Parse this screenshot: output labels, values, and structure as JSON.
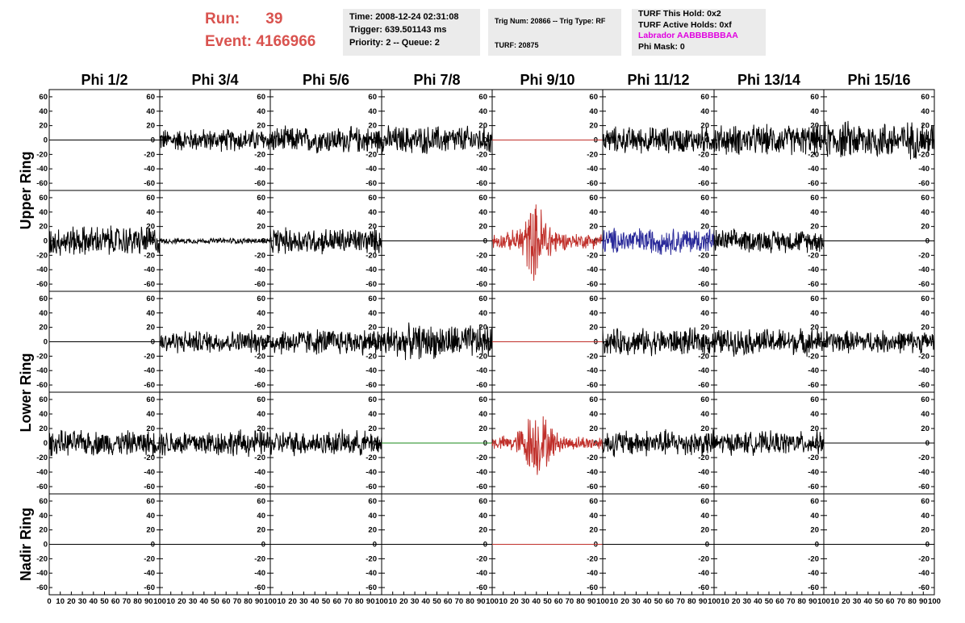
{
  "header": {
    "run_label": "Run:",
    "run_value": "39",
    "event_label": "Event:",
    "event_value": "4166966",
    "time": "Time: 2008-12-24 02:31:08",
    "trigger": "Trigger: 639.501143 ms",
    "priority": "Priority: 2 -- Queue: 2",
    "trig_num": "Trig Num: 20866 -- Trig Type: RF",
    "turf": "TURF: 20875",
    "turf_this_hold": "TURF This Hold: 0x2",
    "turf_active_holds": "TURF Active Holds: 0xf",
    "labrador": "Labrador AABBBBBBAA",
    "phi_mask": "Phi Mask: 0"
  },
  "colors": {
    "run_text": "#d9534f",
    "labrador_text": "#e000e0",
    "trace_default": "#000000",
    "trace_red": "#c0302b",
    "trace_blue": "#2a2a9a",
    "trace_green": "#1a8a1a"
  },
  "chart_data": {
    "type": "line",
    "columns": [
      "Phi 1/2",
      "Phi 3/4",
      "Phi 5/6",
      "Phi 7/8",
      "Phi 9/10",
      "Phi 11/12",
      "Phi 13/14",
      "Phi 15/16"
    ],
    "ring_labels": [
      {
        "label": "Upper Ring",
        "rows": [
          0,
          1
        ]
      },
      {
        "label": "Lower Ring",
        "rows": [
          2,
          3
        ]
      },
      {
        "label": "Nadir Ring",
        "rows": [
          4
        ]
      }
    ],
    "xlim": [
      0,
      100
    ],
    "ylim": [
      -70,
      70
    ],
    "x_ticks": [
      "0",
      "10",
      "20",
      "30",
      "40",
      "50",
      "60",
      "70",
      "80",
      "90",
      "100"
    ],
    "y_ticks": [
      "60",
      "40",
      "20",
      "0",
      "-20",
      "-40",
      "-60"
    ],
    "grid": false,
    "panels": [
      [
        {
          "amplitude": 0,
          "color": "default"
        },
        {
          "amplitude": 12,
          "color": "default"
        },
        {
          "amplitude": 14,
          "color": "default"
        },
        {
          "amplitude": 15,
          "color": "default"
        },
        {
          "amplitude": 0,
          "color": "red"
        },
        {
          "amplitude": 14,
          "color": "default"
        },
        {
          "amplitude": 16,
          "color": "default"
        },
        {
          "amplitude": 20,
          "color": "default"
        }
      ],
      [
        {
          "amplitude": 16,
          "color": "default"
        },
        {
          "amplitude": 3,
          "color": "default"
        },
        {
          "amplitude": 14,
          "color": "default"
        },
        {
          "amplitude": 0,
          "color": "default"
        },
        {
          "amplitude": 18,
          "color": "red",
          "burst": true
        },
        {
          "amplitude": 14,
          "color": "blue"
        },
        {
          "amplitude": 12,
          "color": "default"
        },
        {
          "amplitude": 0,
          "color": "default"
        }
      ],
      [
        {
          "amplitude": 0,
          "color": "default"
        },
        {
          "amplitude": 12,
          "color": "default"
        },
        {
          "amplitude": 14,
          "color": "default"
        },
        {
          "amplitude": 18,
          "color": "default"
        },
        {
          "amplitude": 0,
          "color": "red"
        },
        {
          "amplitude": 14,
          "color": "default"
        },
        {
          "amplitude": 14,
          "color": "default"
        },
        {
          "amplitude": 12,
          "color": "default"
        }
      ],
      [
        {
          "amplitude": 13,
          "color": "default"
        },
        {
          "amplitude": 14,
          "color": "default"
        },
        {
          "amplitude": 13,
          "color": "default"
        },
        {
          "amplitude": 0,
          "color": "green"
        },
        {
          "amplitude": 16,
          "color": "red",
          "burst": true
        },
        {
          "amplitude": 14,
          "color": "default"
        },
        {
          "amplitude": 12,
          "color": "default"
        },
        {
          "amplitude": 0,
          "color": "default"
        }
      ],
      [
        {
          "amplitude": 0,
          "color": "default"
        },
        {
          "amplitude": 0,
          "color": "default"
        },
        {
          "amplitude": 0,
          "color": "default"
        },
        {
          "amplitude": 0,
          "color": "default"
        },
        {
          "amplitude": 0,
          "color": "red"
        },
        {
          "amplitude": 0,
          "color": "default"
        },
        {
          "amplitude": 0,
          "color": "default"
        },
        {
          "amplitude": 0,
          "color": "default"
        }
      ]
    ]
  }
}
